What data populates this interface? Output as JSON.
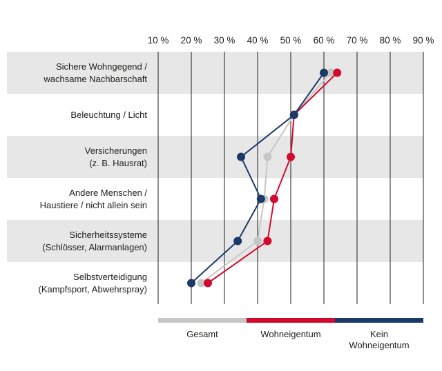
{
  "chart_data": {
    "type": "line",
    "orientation": "horizontal-categories-with-percent-axis",
    "title": "",
    "grid": "vertical",
    "x_axis": {
      "min": 10,
      "max": 90,
      "unit": "%",
      "ticks": [
        "10 %",
        "20 %",
        "30 %",
        "40 %",
        "50 %",
        "60 %",
        "70 %",
        "80 %",
        "90 %"
      ]
    },
    "categories": [
      {
        "lines": [
          "Sichere Wohngegend /",
          "wachsame Nachbarschaft"
        ]
      },
      {
        "lines": [
          "Beleuchtung / Licht"
        ]
      },
      {
        "lines": [
          "Versicherungen",
          "(z. B. Hausrat)"
        ]
      },
      {
        "lines": [
          "Andere Menschen /",
          "Haustiere / nicht allein sein"
        ]
      },
      {
        "lines": [
          "Sicherheitssysteme",
          "(Schlösser, Alarmanlagen)"
        ]
      },
      {
        "lines": [
          "Selbstverteidigung",
          "(Kampfsport, Abwehrspray)"
        ]
      }
    ],
    "series": [
      {
        "name": "Gesamt",
        "color": "#c6c6c5",
        "values": [
          62,
          51,
          43,
          42,
          40,
          23
        ]
      },
      {
        "name": "Wohneigentum",
        "color": "#d20a2e",
        "values": [
          64,
          51,
          50,
          45,
          43,
          25
        ]
      },
      {
        "name": "Kein Wohneigentum",
        "color": "#1b3a68",
        "values": [
          60,
          51,
          35,
          41,
          34,
          20
        ]
      }
    ],
    "legend": {
      "position": "bottom",
      "entries": [
        "Gesamt",
        "Wohneigentum",
        "Kein Wohneigentum"
      ]
    },
    "band_colors": {
      "odd_rows": "#e7e7e7",
      "even_rows": "#ffffff"
    }
  }
}
